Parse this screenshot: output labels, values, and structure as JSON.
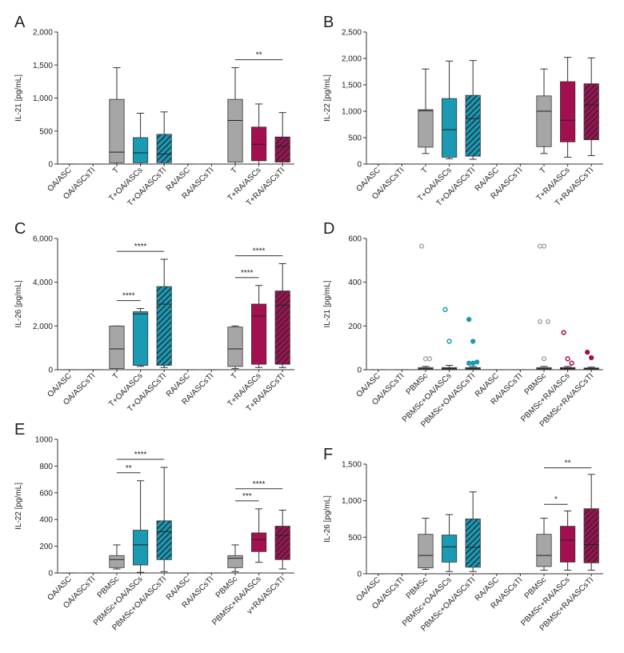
{
  "chart_data": [
    {
      "type": "box",
      "label": "A",
      "ylabel": "IL-21 [pg/mL]",
      "categories": [
        "OA/ASC",
        "OA/ASCsTI",
        "T",
        "T+OA/ASCs",
        "T+OA/ASCsTI",
        "RA/ASC",
        "RA/ASCsTI",
        "T",
        "T+RA/ASCs",
        "T+RA/ASCsTI"
      ],
      "min": [
        0,
        0,
        0,
        0,
        0,
        0,
        0,
        0,
        0,
        0
      ],
      "q1": [
        0,
        0,
        20,
        20,
        20,
        0,
        0,
        30,
        50,
        30
      ],
      "median": [
        0,
        0,
        180,
        170,
        150,
        0,
        0,
        660,
        300,
        270
      ],
      "q3": [
        0,
        0,
        980,
        400,
        450,
        0,
        0,
        980,
        560,
        410
      ],
      "max": [
        0,
        0,
        1460,
        770,
        790,
        0,
        0,
        1460,
        910,
        780
      ],
      "colors": [
        "#a6a6a6",
        "#a6a6a6",
        "#a6a6a6",
        "#1b9ab4",
        "#1b9ab4",
        "#a6a6a6",
        "#a6a6a6",
        "#a6a6a6",
        "#a4104f",
        "#a4104f"
      ],
      "hatched": [
        false,
        false,
        false,
        false,
        true,
        false,
        false,
        false,
        false,
        true
      ],
      "ylim": [
        0,
        2000
      ],
      "yticks": [
        0,
        500,
        {
          "value": 1000,
          "label": "1,000"
        },
        {
          "value": 1500,
          "label": "1,500"
        },
        {
          "value": 2000,
          "label": "2,000"
        }
      ],
      "significance": [
        {
          "from": 7,
          "to": 9,
          "label": "**"
        }
      ]
    },
    {
      "type": "box",
      "label": "B",
      "ylabel": "IL-22 [pg/mL]",
      "categories": [
        "OA/ASC",
        "OA/ASCsTI",
        "T",
        "T+OA/ASCs",
        "T+OA/ASCsTI",
        "RA/ASC",
        "RA/ASCsTI",
        "T",
        "T+RA/ASCs",
        "T+RA/ASCsTI"
      ],
      "min": [
        0,
        0,
        200,
        100,
        90,
        0,
        0,
        200,
        130,
        160
      ],
      "q1": [
        0,
        0,
        320,
        130,
        150,
        0,
        0,
        330,
        420,
        460
      ],
      "median": [
        0,
        0,
        1010,
        650,
        860,
        0,
        0,
        1000,
        830,
        1120
      ],
      "q3": [
        0,
        0,
        1030,
        1240,
        1300,
        0,
        0,
        1290,
        1560,
        1520
      ],
      "max": [
        0,
        0,
        1800,
        1950,
        1960,
        0,
        0,
        1800,
        2020,
        2010
      ],
      "colors": [
        "#a6a6a6",
        "#a6a6a6",
        "#a6a6a6",
        "#1b9ab4",
        "#1b9ab4",
        "#a6a6a6",
        "#a6a6a6",
        "#a6a6a6",
        "#a4104f",
        "#a4104f"
      ],
      "hatched": [
        false,
        false,
        false,
        false,
        true,
        false,
        false,
        false,
        false,
        true
      ],
      "ylim": [
        0,
        2500
      ],
      "yticks": [
        0,
        500,
        {
          "value": 1000,
          "label": "1,000"
        },
        {
          "value": 1500,
          "label": "1,500"
        },
        {
          "value": 2000,
          "label": "2,000"
        },
        {
          "value": 2500,
          "label": "2,500"
        }
      ],
      "significance": []
    },
    {
      "type": "box",
      "label": "C",
      "ylabel": "IL-26 [pg/mL]",
      "categories": [
        "OA/ASC",
        "OA/ASCsTI",
        "T",
        "T+OA/ASCs",
        "T+OA/ASCsTI",
        "RA/ASC",
        "RA/ASCsTI",
        "T",
        "T+RA/ASCs",
        "T+RA/ASCsTI"
      ],
      "min": [
        0,
        0,
        0,
        150,
        100,
        0,
        0,
        50,
        100,
        100
      ],
      "q1": [
        0,
        0,
        50,
        200,
        200,
        0,
        0,
        150,
        250,
        250
      ],
      "median": [
        0,
        0,
        950,
        2550,
        3000,
        0,
        0,
        950,
        2450,
        2950
      ],
      "q3": [
        0,
        0,
        2000,
        2650,
        3800,
        0,
        0,
        1950,
        3000,
        3600
      ],
      "max": [
        0,
        0,
        2000,
        2800,
        5050,
        0,
        0,
        2000,
        3850,
        4850
      ],
      "colors": [
        "#a6a6a6",
        "#a6a6a6",
        "#a6a6a6",
        "#1b9ab4",
        "#1b9ab4",
        "#a6a6a6",
        "#a6a6a6",
        "#a6a6a6",
        "#a4104f",
        "#a4104f"
      ],
      "hatched": [
        false,
        false,
        false,
        false,
        true,
        false,
        false,
        false,
        false,
        true
      ],
      "ylim": [
        0,
        6000
      ],
      "yticks": [
        0,
        {
          "value": 2000,
          "label": "2,000"
        },
        {
          "value": 4000,
          "label": "4,000"
        },
        {
          "value": 6000,
          "label": "6,000"
        }
      ],
      "significance": [
        {
          "from": 2,
          "to": 3,
          "label": "****"
        },
        {
          "from": 2,
          "to": 4,
          "label": "****"
        },
        {
          "from": 7,
          "to": 8,
          "label": "****"
        },
        {
          "from": 7,
          "to": 9,
          "label": "****"
        }
      ]
    },
    {
      "type": "box",
      "label": "D",
      "ylabel": "IL-21 [pg/mL]",
      "categories": [
        "OA/ASC",
        "OA/ASCsTI",
        "PBMSc",
        "PBMSc+OA/ASCs",
        "PBMSc+OA/ASCsTI",
        "RA/ASC",
        "RA/ASCsTI",
        "PBMSc",
        "PBMSc+RA/ASCs",
        "PBMSc+RA/ASCsTI"
      ],
      "min": [
        0,
        0,
        0,
        0,
        0,
        0,
        0,
        0,
        0,
        0
      ],
      "q1": [
        0,
        0,
        2,
        2,
        2,
        0,
        0,
        2,
        2,
        2
      ],
      "median": [
        0,
        0,
        5,
        5,
        5,
        0,
        0,
        5,
        5,
        5
      ],
      "q3": [
        0,
        0,
        10,
        10,
        10,
        0,
        0,
        10,
        10,
        8
      ],
      "max": [
        0,
        0,
        15,
        20,
        15,
        0,
        0,
        15,
        15,
        12
      ],
      "outliers": [
        [],
        [],
        [
          565,
          50,
          50
        ],
        [
          275,
          130
        ],
        [
          230,
          130,
          35,
          30,
          30
        ],
        [],
        [],
        [
          565,
          565,
          220,
          220,
          50
        ],
        [
          170,
          50,
          30
        ],
        [
          80,
          55
        ]
      ],
      "colors": [
        "#a6a6a6",
        "#a6a6a6",
        "#a6a6a6",
        "#1b9ab4",
        "#1b9ab4",
        "#a6a6a6",
        "#a6a6a6",
        "#a6a6a6",
        "#a4104f",
        "#a4104f"
      ],
      "hatched": [
        false,
        false,
        false,
        false,
        true,
        false,
        false,
        false,
        false,
        true
      ],
      "ylim": [
        0,
        600
      ],
      "yticks": [
        0,
        200,
        400,
        600
      ],
      "significance": []
    },
    {
      "type": "box",
      "label": "E",
      "ylabel": "IL-22 [pg/mL]",
      "categories": [
        "OA/ASC",
        "OA/ASCsTI",
        "PBMSc",
        "PBMSc+OA/ASCs",
        "PBMSc+OA/ASCsTI",
        "RA/ASC",
        "RA/ASCsTI",
        "PBMSc",
        "PBMSc+RA/ASCs",
        "v+RA/ASCsTI"
      ],
      "min": [
        0,
        0,
        30,
        5,
        10,
        0,
        0,
        10,
        80,
        30
      ],
      "q1": [
        0,
        0,
        40,
        60,
        100,
        0,
        0,
        40,
        160,
        100
      ],
      "median": [
        0,
        0,
        100,
        210,
        310,
        0,
        0,
        110,
        250,
        280
      ],
      "q3": [
        0,
        0,
        130,
        320,
        390,
        0,
        0,
        130,
        300,
        350
      ],
      "max": [
        0,
        0,
        210,
        690,
        790,
        0,
        0,
        210,
        480,
        470
      ],
      "colors": [
        "#a6a6a6",
        "#a6a6a6",
        "#a6a6a6",
        "#1b9ab4",
        "#1b9ab4",
        "#a6a6a6",
        "#a6a6a6",
        "#a6a6a6",
        "#a4104f",
        "#a4104f"
      ],
      "hatched": [
        false,
        false,
        false,
        false,
        true,
        false,
        false,
        false,
        false,
        true
      ],
      "ylim": [
        0,
        1000
      ],
      "yticks": [
        0,
        200,
        400,
        600,
        800,
        1000
      ],
      "significance": [
        {
          "from": 2,
          "to": 3,
          "label": "**"
        },
        {
          "from": 2,
          "to": 4,
          "label": "****"
        },
        {
          "from": 7,
          "to": 8,
          "label": "***"
        },
        {
          "from": 7,
          "to": 9,
          "label": "****"
        }
      ]
    },
    {
      "type": "box",
      "label": "F",
      "ylabel": "IL-26 [pg/mL]",
      "categories": [
        "OA/ASC",
        "OA/ASCsTI",
        "PBMSc",
        "PBMSc+OA/ASCs",
        "PBMSc+OA/ASCsTI",
        "RA/ASC",
        "RA/ASCsTI",
        "PBMSc",
        "PBMSc+RA/ASCs",
        "PBMSc+RA/ASCsTI"
      ],
      "min": [
        0,
        0,
        60,
        30,
        30,
        0,
        0,
        50,
        50,
        50
      ],
      "q1": [
        0,
        0,
        80,
        160,
        90,
        0,
        0,
        100,
        160,
        150
      ],
      "median": [
        0,
        0,
        250,
        370,
        360,
        0,
        0,
        250,
        460,
        400
      ],
      "q3": [
        0,
        0,
        540,
        530,
        750,
        0,
        0,
        540,
        650,
        890
      ],
      "max": [
        0,
        0,
        760,
        810,
        1120,
        0,
        0,
        760,
        860,
        1360
      ],
      "colors": [
        "#a6a6a6",
        "#a6a6a6",
        "#a6a6a6",
        "#1b9ab4",
        "#1b9ab4",
        "#a6a6a6",
        "#a6a6a6",
        "#a6a6a6",
        "#a4104f",
        "#a4104f"
      ],
      "hatched": [
        false,
        false,
        false,
        false,
        true,
        false,
        false,
        false,
        false,
        true
      ],
      "ylim": [
        0,
        1500
      ],
      "yticks": [
        0,
        500,
        {
          "value": 1000,
          "label": "1,000"
        },
        {
          "value": 1500,
          "label": "1,500"
        }
      ],
      "significance": [
        {
          "from": 7,
          "to": 8,
          "label": "*"
        },
        {
          "from": 7,
          "to": 9,
          "label": "**"
        }
      ]
    }
  ]
}
